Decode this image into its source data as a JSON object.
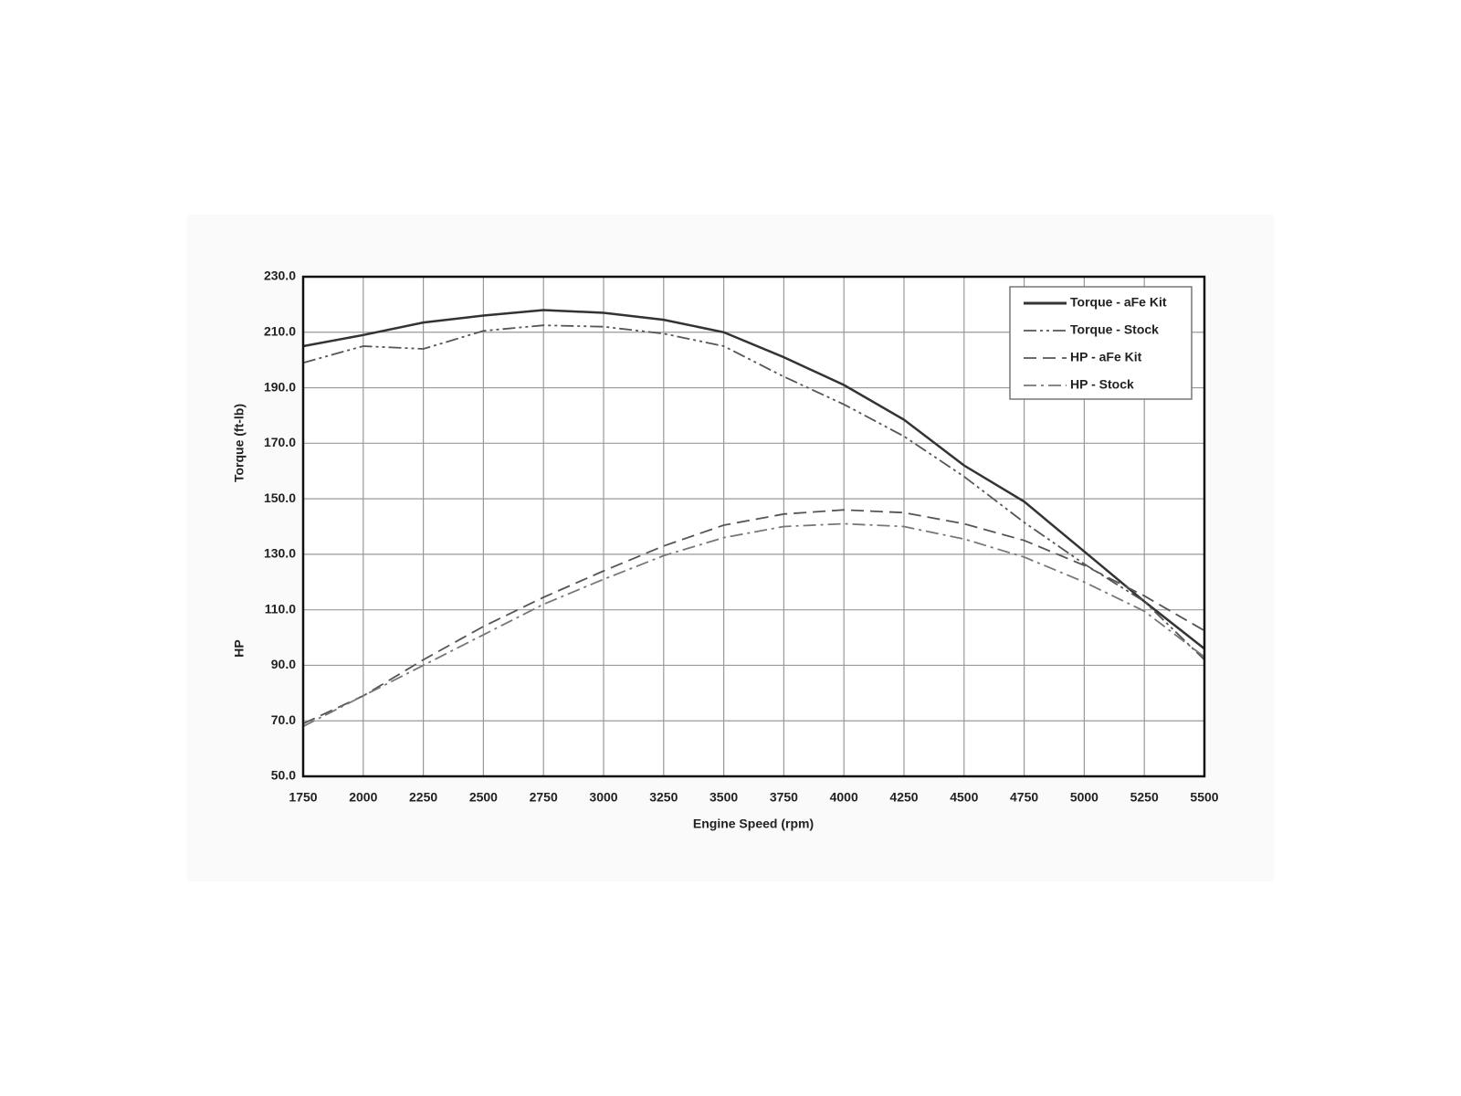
{
  "chart_data": {
    "type": "line",
    "y_label_top": "Torque (ft-lb)",
    "y_label_bottom": "HP",
    "x_label": "Engine Speed (rpm)",
    "x": [
      1750,
      2000,
      2250,
      2500,
      2750,
      3000,
      3250,
      3500,
      3750,
      4000,
      4250,
      4500,
      4750,
      5000,
      5250,
      5500
    ],
    "xlim": [
      1750,
      5500
    ],
    "xticks": [
      1750,
      2000,
      2250,
      2500,
      2750,
      3000,
      3250,
      3500,
      3750,
      4000,
      4250,
      4500,
      4750,
      5000,
      5250,
      5500
    ],
    "ylim": [
      50,
      230
    ],
    "yticks": [
      {
        "value": 50,
        "label": "50.0"
      },
      {
        "value": 70,
        "label": "70.0"
      },
      {
        "value": 90,
        "label": "90.0"
      },
      {
        "value": 110,
        "label": "110.0"
      },
      {
        "value": 130,
        "label": "130.0"
      },
      {
        "value": 150,
        "label": "150.0"
      },
      {
        "value": 170,
        "label": "170.0"
      },
      {
        "value": 190,
        "label": "190.0"
      },
      {
        "value": 210,
        "label": "210.0"
      },
      {
        "value": 230,
        "label": "230.0"
      }
    ],
    "grid": true,
    "legend": "upper right",
    "series": [
      {
        "name": "Torque - aFe Kit",
        "color": "#333333",
        "dash": "solid",
        "values": [
          205,
          209,
          213.5,
          216,
          218,
          217,
          214.5,
          210,
          201,
          191,
          178.5,
          162,
          149,
          131,
          113,
          96
        ]
      },
      {
        "name": "Torque - Stock",
        "color": "#555555",
        "dash": "dash-dot-dot",
        "values": [
          199,
          205,
          204,
          210.5,
          212.5,
          212,
          209.5,
          205,
          194,
          184,
          172.5,
          158,
          141.5,
          126.5,
          113,
          92
        ]
      },
      {
        "name": "HP - aFe Kit",
        "color": "#555555",
        "dash": "dashed",
        "values": [
          69,
          79,
          92,
          104,
          114.5,
          124,
          133,
          140.5,
          144.5,
          146,
          145,
          141,
          135,
          126,
          115,
          102.5
        ]
      },
      {
        "name": "HP - Stock",
        "color": "#777777",
        "dash": "dash-dot",
        "values": [
          68,
          79,
          90,
          101,
          112,
          121,
          129.5,
          136,
          140,
          141,
          140,
          135.5,
          129,
          120,
          109.5,
          93
        ]
      }
    ]
  }
}
